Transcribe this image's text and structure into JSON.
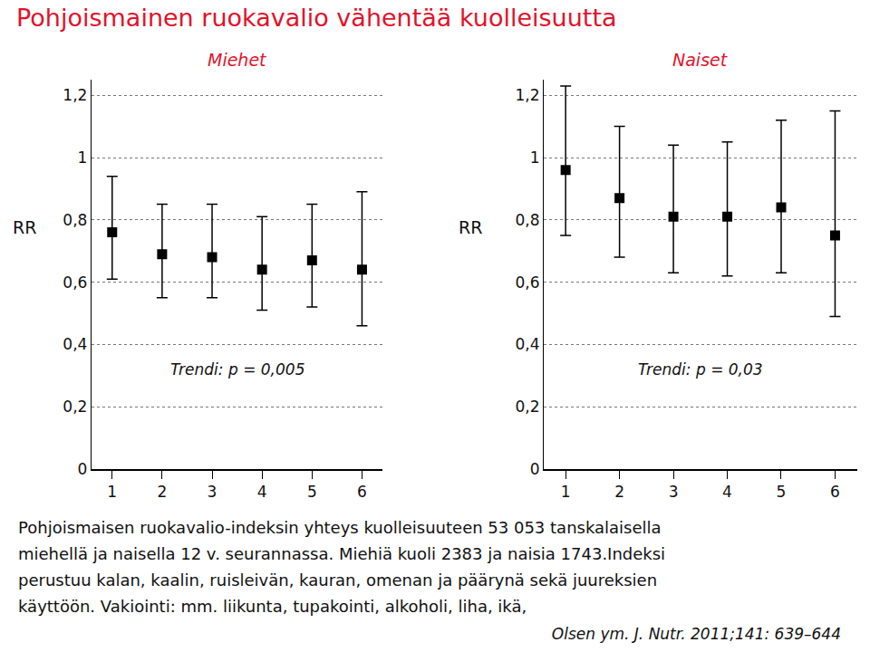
{
  "title": "Pohjoismainen ruokavalio vähentää kuolleisuutta",
  "caption": [
    "Pohjoismaisen ruokavalio-indeksin yhteys kuolleisuuteen 53 053 tanskalaisella",
    "miehellä ja naisella 12 v. seurannassa. Miehiä kuoli 2383 ja naisia 1743.Indeksi",
    "perustuu kalan, kaalin, ruisleivän, kauran, omenan ja päärynä sekä juureksien",
    "käyttöön. Vakiointi: mm. liikunta, tupakointi, alkoholi, liha, ikä,"
  ],
  "source": "Olsen ym. J. Nutr. 2011;141: 639–644",
  "chart_data": [
    {
      "type": "scatter",
      "title": "Miehet",
      "ylabel": "RR",
      "categories": [
        "1",
        "2",
        "3",
        "4",
        "5",
        "6"
      ],
      "values": [
        0.76,
        0.69,
        0.68,
        0.64,
        0.67,
        0.64
      ],
      "lower": [
        0.61,
        0.55,
        0.55,
        0.51,
        0.52,
        0.46
      ],
      "upper": [
        0.94,
        0.85,
        0.85,
        0.81,
        0.85,
        0.89
      ],
      "color": "#000000",
      "marker": "square",
      "ylim": [
        0,
        1.25
      ],
      "yticks": [
        0,
        {
          "value": 0.2,
          "label": "0,2"
        },
        {
          "value": 0.4,
          "label": "0,4"
        },
        {
          "value": 0.6,
          "label": "0,6"
        },
        {
          "value": 0.8,
          "label": "0,8"
        },
        1,
        {
          "value": 1.2,
          "label": "1,2"
        }
      ],
      "grid": true,
      "annotation": "Trendi: p = 0,005"
    },
    {
      "type": "scatter",
      "title": "Naiset",
      "ylabel": "RR",
      "categories": [
        "1",
        "2",
        "3",
        "4",
        "5",
        "6"
      ],
      "values": [
        0.96,
        0.87,
        0.81,
        0.81,
        0.84,
        0.75
      ],
      "lower": [
        0.75,
        0.68,
        0.63,
        0.62,
        0.63,
        0.49
      ],
      "upper": [
        1.23,
        1.1,
        1.04,
        1.05,
        1.12,
        1.15
      ],
      "color": "#000000",
      "marker": "square",
      "ylim": [
        0,
        1.25
      ],
      "yticks": [
        0,
        {
          "value": 0.2,
          "label": "0,2"
        },
        {
          "value": 0.4,
          "label": "0,4"
        },
        {
          "value": 0.6,
          "label": "0,6"
        },
        {
          "value": 0.8,
          "label": "0,8"
        },
        1,
        {
          "value": 1.2,
          "label": "1,2"
        }
      ],
      "grid": true,
      "annotation": "Trendi: p = 0,03"
    }
  ]
}
